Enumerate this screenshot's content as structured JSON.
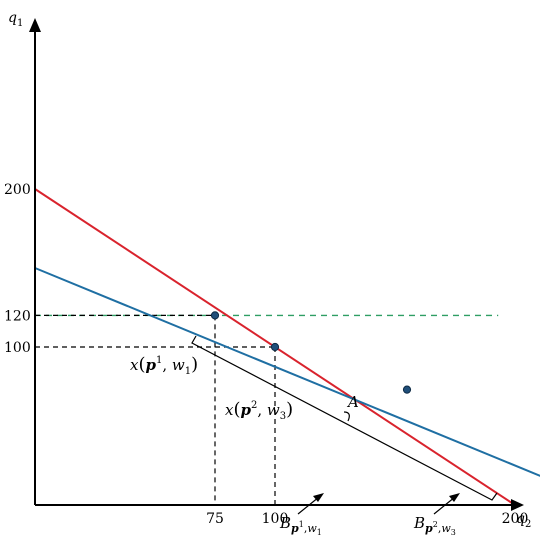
{
  "chart_data": {
    "type": "line",
    "title": "",
    "xlabel": "q₂",
    "ylabel": "q₁",
    "xlim": [
      -3,
      255
    ],
    "ylim": [
      -3,
      215
    ],
    "x_ticks": [
      75,
      100,
      200
    ],
    "y_ticks": [
      100,
      120,
      200
    ],
    "grid": false,
    "series": [
      {
        "name": "B_{p¹,w₁}",
        "color": "#d9232d",
        "points": [
          [
            0,
            200
          ],
          [
            200,
            0
          ]
        ]
      },
      {
        "name": "B_{p²,w₃}",
        "color": "#1f6fa3",
        "points": [
          [
            0,
            150
          ],
          [
            240,
            0
          ]
        ]
      }
    ],
    "reference_line": {
      "y": 120,
      "color": "#2f9e63",
      "style": "dashed"
    },
    "dropped_lines": [
      {
        "x": 75,
        "y": 120
      },
      {
        "x": 100,
        "y": 100
      }
    ],
    "points": [
      {
        "x": 75,
        "y": 120
      },
      {
        "x": 100,
        "y": 100
      },
      {
        "x": 155,
        "y": 73
      }
    ],
    "labels": {
      "budget_red": {
        "B": "B",
        "p": "p",
        "sup": "1",
        "comma": ",",
        "w": "w",
        "sub": "1"
      },
      "budget_blue": {
        "B": "B",
        "p": "p",
        "sup": "2",
        "comma": ",",
        "w": "w",
        "sub": "3"
      },
      "x_p1": {
        "x": "x",
        "open": "(",
        "p": "p",
        "sup": "1",
        "comma": ", ",
        "w": "w",
        "sub": "1",
        "close": ")"
      },
      "x_p2": {
        "x": "x",
        "open": "(",
        "p": "p",
        "sup": "2",
        "comma": ", ",
        "w": "w",
        "sub": "3",
        "close": ")"
      },
      "segment": "A"
    }
  }
}
